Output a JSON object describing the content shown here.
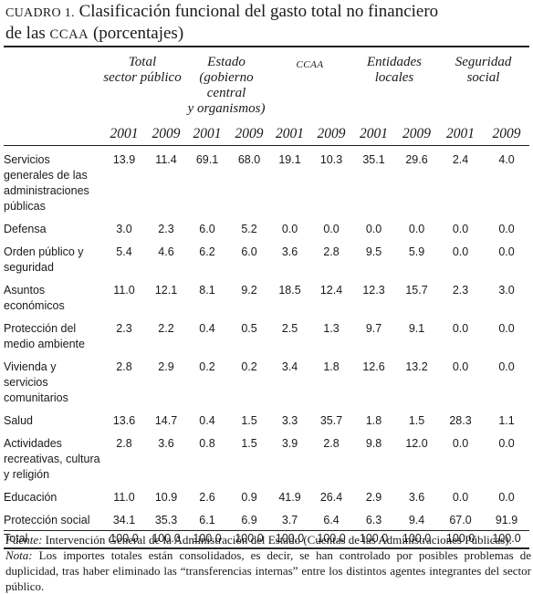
{
  "title": {
    "caption_label": "CUADRO 1.",
    "text_part1": "Clasificación funcional del gasto total no financiero",
    "text_part2": "de las",
    "ccaa": "CCAA",
    "text_part3": "(porcentajes)"
  },
  "columns": {
    "total": [
      "Total",
      "sector público"
    ],
    "estado": [
      "Estado",
      "(gobierno",
      "central",
      "y organismos)"
    ],
    "ccaa": "CCAA",
    "entidades": [
      "Entidades",
      "locales"
    ],
    "seguridad": [
      "Seguridad",
      "social"
    ],
    "years": [
      "2001",
      "2009",
      "2001",
      "2009",
      "2001",
      "2009",
      "2001",
      "2009",
      "2001",
      "2009"
    ]
  },
  "rows": [
    {
      "label": [
        "Servicios",
        "generales de las",
        "administraciones",
        "públicas"
      ],
      "values": [
        "13.9",
        "11.4",
        "69.1",
        "68.0",
        "19.1",
        "10.3",
        "35.1",
        "29.6",
        "2.4",
        "4.0"
      ]
    },
    {
      "label": [
        "Defensa"
      ],
      "values": [
        "3.0",
        "2.3",
        "6.0",
        "5.2",
        "0.0",
        "0.0",
        "0.0",
        "0.0",
        "0.0",
        "0.0"
      ]
    },
    {
      "label": [
        "Orden público y",
        "seguridad"
      ],
      "values": [
        "5.4",
        "4.6",
        "6.2",
        "6.0",
        "3.6",
        "2.8",
        "9.5",
        "5.9",
        "0.0",
        "0.0"
      ]
    },
    {
      "label": [
        "Asuntos",
        "económicos"
      ],
      "values": [
        "11.0",
        "12.1",
        "8.1",
        "9.2",
        "18.5",
        "12.4",
        "12.3",
        "15.7",
        "2.3",
        "3.0"
      ]
    },
    {
      "label": [
        "Protección del",
        "medio ambiente"
      ],
      "values": [
        "2.3",
        "2.2",
        "0.4",
        "0.5",
        "2.5",
        "1.3",
        "9.7",
        "9.1",
        "0.0",
        "0.0"
      ]
    },
    {
      "label": [
        "Vivienda y servicios",
        "comunitarios"
      ],
      "values": [
        "2.8",
        "2.9",
        "0.2",
        "0.2",
        "3.4",
        "1.8",
        "12.6",
        "13.2",
        "0.0",
        "0.0"
      ]
    },
    {
      "label": [
        "Salud"
      ],
      "values": [
        "13.6",
        "14.7",
        "0.4",
        "1.5",
        "3.3",
        "35.7",
        "1.8",
        "1.5",
        "28.3",
        "1.1"
      ]
    },
    {
      "label": [
        "Actividades",
        "recreativas, cultura",
        "y religión"
      ],
      "values": [
        "2.8",
        "3.6",
        "0.8",
        "1.5",
        "3.9",
        "2.8",
        "9.8",
        "12.0",
        "0.0",
        "0.0"
      ]
    },
    {
      "label": [
        "Educación"
      ],
      "values": [
        "11.0",
        "10.9",
        "2.6",
        "0.9",
        "41.9",
        "26.4",
        "2.9",
        "3.6",
        "0.0",
        "0.0"
      ]
    },
    {
      "label": [
        "Protección social"
      ],
      "values": [
        "34.1",
        "35.3",
        "6.1",
        "6.9",
        "3.7",
        "6.4",
        "6.3",
        "9.4",
        "67.0",
        "91.9"
      ]
    }
  ],
  "total_row": {
    "label": "Total",
    "values": [
      "100.0",
      "100.0",
      "100.0",
      "100.0",
      "100.0",
      "100.0",
      "100.0",
      "100.0",
      "100.0",
      "100.0"
    ]
  },
  "notes": {
    "source_label": "Fuente:",
    "source_text": "Intervención General de la Administración del Estado (Cuentas de las Administraciones Públicas).",
    "note_label": "Nota:",
    "note_text": "Los importes totales están consolidados, es decir, se han controlado por posibles problemas de duplicidad, tras haber eliminado las “transferencias internas” entre los distintos agentes integrantes del sector público."
  }
}
